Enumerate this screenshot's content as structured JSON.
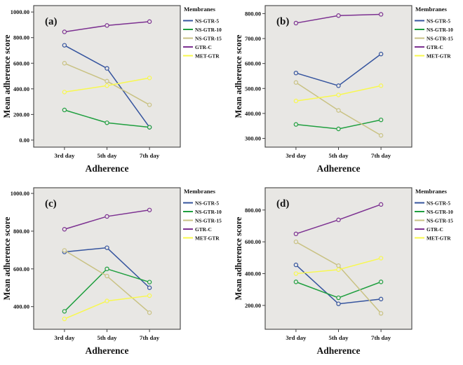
{
  "figure": {
    "background": "#ffffff",
    "plot_background": "#e8e7e4",
    "frame_color": "#404040",
    "text_color": "#141414",
    "series_colors": {
      "NS-GTR-5": "#35549e",
      "NS-GTR-10": "#1f9f3f",
      "NS-GTR-15": "#c9c283",
      "GTR-C": "#7c3191",
      "MET-GTR": "#f8f84e"
    }
  },
  "chart_data": [
    {
      "type": "line",
      "panel_label": "(a)",
      "xlabel": "Adherence",
      "ylabel": "Mean adherence score",
      "legend_title": "Membranes",
      "legend_position": "right",
      "grid": false,
      "categories": [
        "3rd day",
        "5th day",
        "7th day"
      ],
      "ylim": [
        -55,
        1050
      ],
      "yticks": [
        0,
        200,
        400,
        600,
        800,
        1000
      ],
      "yticklabels": [
        "0.00",
        "200.00",
        "400.00",
        "600.00",
        "800.00",
        "1000.00"
      ],
      "series": [
        {
          "name": "NS-GTR-5",
          "values": [
            740,
            560,
            100
          ]
        },
        {
          "name": "NS-GTR-10",
          "values": [
            235,
            135,
            100
          ]
        },
        {
          "name": "NS-GTR-15",
          "values": [
            600,
            460,
            275
          ]
        },
        {
          "name": "GTR-C",
          "values": [
            845,
            895,
            925
          ]
        },
        {
          "name": "MET-GTR",
          "values": [
            375,
            425,
            485
          ]
        }
      ]
    },
    {
      "type": "line",
      "panel_label": "(b)",
      "xlabel": "Adherence",
      "ylabel": "Mean adherence score",
      "legend_title": "Membranes",
      "legend_position": "right",
      "grid": false,
      "categories": [
        "3rd day",
        "5th day",
        "7th day"
      ],
      "ylim": [
        265,
        832
      ],
      "yticks": [
        300,
        400,
        500,
        600,
        700,
        800
      ],
      "yticklabels": [
        "300.00",
        "400.00",
        "500.00",
        "600.00",
        "700.00",
        "800.00"
      ],
      "series": [
        {
          "name": "NS-GTR-5",
          "values": [
            562,
            511,
            638
          ]
        },
        {
          "name": "NS-GTR-10",
          "values": [
            356,
            338,
            374
          ]
        },
        {
          "name": "NS-GTR-15",
          "values": [
            524,
            412,
            312
          ]
        },
        {
          "name": "GTR-C",
          "values": [
            762,
            792,
            797
          ]
        },
        {
          "name": "MET-GTR",
          "values": [
            450,
            474,
            511
          ]
        }
      ]
    },
    {
      "type": "line",
      "panel_label": "(c)",
      "xlabel": "Adherence",
      "ylabel": "Mean adherence score",
      "legend_title": "Membranes",
      "legend_position": "right",
      "grid": false,
      "categories": [
        "3rd day",
        "5th day",
        "7th day"
      ],
      "ylim": [
        280,
        1030
      ],
      "yticks": [
        400,
        600,
        800,
        1000
      ],
      "yticklabels": [
        "400.00",
        "600.00",
        "800.00",
        "1000.00"
      ],
      "series": [
        {
          "name": "NS-GTR-5",
          "values": [
            690,
            712,
            500
          ]
        },
        {
          "name": "NS-GTR-10",
          "values": [
            375,
            600,
            530
          ]
        },
        {
          "name": "NS-GTR-15",
          "values": [
            698,
            562,
            368
          ]
        },
        {
          "name": "GTR-C",
          "values": [
            810,
            878,
            912
          ]
        },
        {
          "name": "MET-GTR",
          "values": [
            335,
            430,
            458
          ]
        }
      ]
    },
    {
      "type": "line",
      "panel_label": "(d)",
      "xlabel": "Adherence",
      "ylabel": "Mean adherence score",
      "legend_title": "Membranes",
      "legend_position": "right",
      "grid": false,
      "categories": [
        "3rd day",
        "5th day",
        "7th day"
      ],
      "ylim": [
        50,
        940
      ],
      "yticks": [
        200,
        400,
        600,
        800
      ],
      "yticklabels": [
        "200.00",
        "400.00",
        "600.00",
        "800.00"
      ],
      "series": [
        {
          "name": "NS-GTR-5",
          "values": [
            455,
            210,
            240
          ]
        },
        {
          "name": "NS-GTR-10",
          "values": [
            348,
            248,
            348
          ]
        },
        {
          "name": "NS-GTR-15",
          "values": [
            600,
            450,
            150
          ]
        },
        {
          "name": "GTR-C",
          "values": [
            650,
            738,
            835
          ]
        },
        {
          "name": "MET-GTR",
          "values": [
            400,
            425,
            497
          ]
        }
      ]
    }
  ]
}
